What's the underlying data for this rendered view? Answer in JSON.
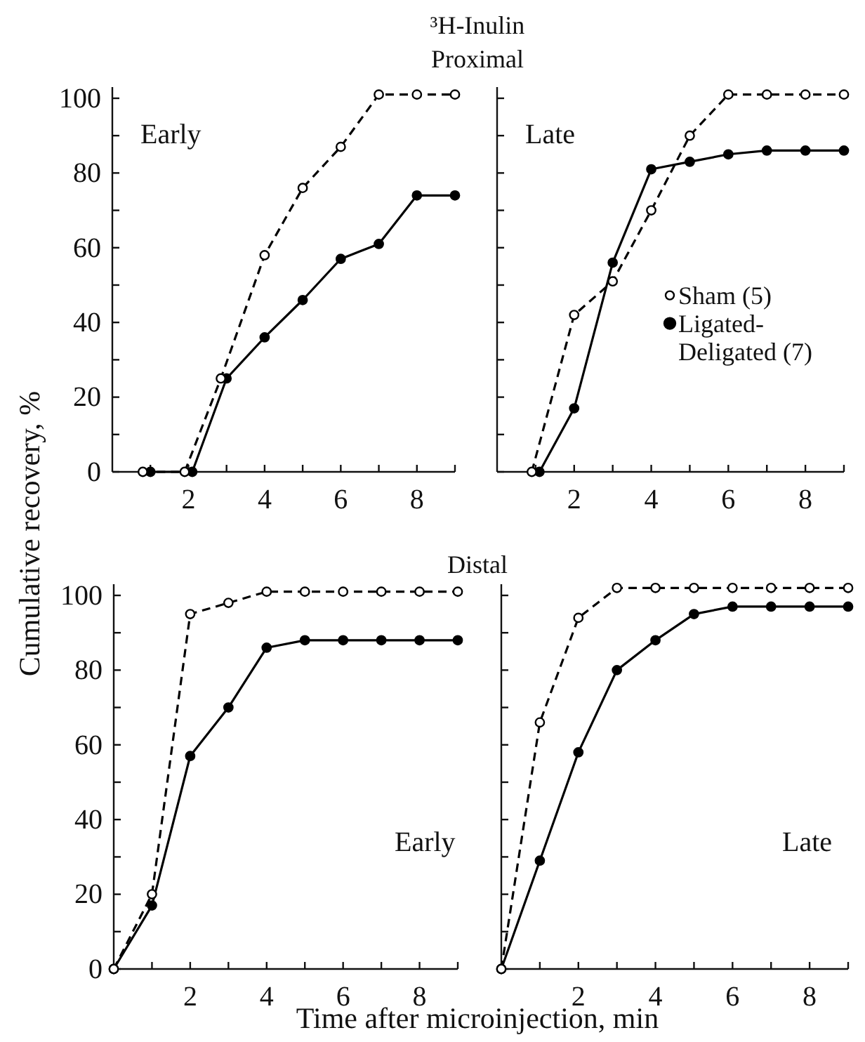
{
  "chart_data": [
    {
      "type": "line",
      "title": "³H-Inulin",
      "subtitle": "Proximal",
      "ylabel": "Cumulative recovery, %",
      "annotations": [
        "Early"
      ],
      "xlim": [
        0,
        9
      ],
      "ylim": [
        0,
        103
      ],
      "xticks": [
        {
          "value": 1,
          "label": null
        },
        2,
        {
          "value": 3,
          "label": null
        },
        4,
        {
          "value": 5,
          "label": null
        },
        6,
        {
          "value": 7,
          "label": null
        },
        8,
        {
          "value": 9,
          "label": null
        }
      ],
      "yticks": [
        0,
        {
          "value": 10,
          "label": null
        },
        20,
        {
          "value": 30,
          "label": null
        },
        40,
        {
          "value": 50,
          "label": null
        },
        60,
        {
          "value": 70,
          "label": null
        },
        80,
        {
          "value": 90,
          "label": null
        },
        100
      ],
      "marker": "circle",
      "grid": false,
      "legend": false,
      "series": [
        {
          "color": "#000000",
          "line_style": "dashed",
          "x": [
            0.8,
            1.9,
            2.85,
            4,
            5,
            6,
            7,
            8,
            9
          ],
          "values": [
            0,
            0,
            25,
            58,
            76,
            87,
            101,
            101,
            101
          ]
        },
        {
          "color": "#000000",
          "line_style": "solid",
          "x": [
            1,
            2.1,
            3,
            4,
            5,
            6,
            7,
            8,
            9
          ],
          "values": [
            0,
            0,
            25,
            36,
            46,
            57,
            61,
            74,
            74
          ]
        }
      ]
    },
    {
      "type": "line",
      "annotations": [
        "Late"
      ],
      "xlim": [
        0,
        9
      ],
      "ylim": [
        0,
        103
      ],
      "tick_labels": "x",
      "xticks": [
        {
          "value": 1,
          "label": null
        },
        2,
        {
          "value": 3,
          "label": null
        },
        4,
        {
          "value": 5,
          "label": null
        },
        6,
        {
          "value": 7,
          "label": null
        },
        8,
        {
          "value": 9,
          "label": null
        }
      ],
      "yticks": [
        0,
        {
          "value": 10,
          "label": null
        },
        20,
        {
          "value": 30,
          "label": null
        },
        40,
        {
          "value": 50,
          "label": null
        },
        60,
        {
          "value": 70,
          "label": null
        },
        80,
        {
          "value": 90,
          "label": null
        },
        100
      ],
      "marker": "circle",
      "grid": false,
      "legend": "right",
      "series": [
        {
          "name": "Sham (5)",
          "color": "#000000",
          "line_style": "dashed",
          "x": [
            0.9,
            2,
            3,
            4,
            5,
            6,
            7,
            8,
            9
          ],
          "values": [
            0,
            42,
            51,
            70,
            90,
            101,
            101,
            101,
            101
          ]
        },
        {
          "name": "Ligated-Deligated (7)",
          "color": "#000000",
          "line_style": "solid",
          "x": [
            1.1,
            2,
            3,
            4,
            5,
            6,
            7,
            8,
            9
          ],
          "values": [
            0,
            17,
            56,
            81,
            83,
            85,
            86,
            86,
            86
          ]
        }
      ]
    },
    {
      "type": "line",
      "title": "Distal",
      "xlabel": "Time after microinjection, min",
      "annotations": [
        "Early"
      ],
      "xlim": [
        0,
        9
      ],
      "ylim": [
        0,
        103
      ],
      "xticks": [
        {
          "value": 1,
          "label": null
        },
        2,
        {
          "value": 3,
          "label": null
        },
        4,
        {
          "value": 5,
          "label": null
        },
        6,
        {
          "value": 7,
          "label": null
        },
        8,
        {
          "value": 9,
          "label": null
        }
      ],
      "yticks": [
        0,
        {
          "value": 10,
          "label": null
        },
        20,
        {
          "value": 30,
          "label": null
        },
        40,
        {
          "value": 50,
          "label": null
        },
        60,
        {
          "value": 70,
          "label": null
        },
        80,
        {
          "value": 90,
          "label": null
        },
        100
      ],
      "marker": "circle",
      "grid": false,
      "legend": false,
      "series": [
        {
          "color": "#000000",
          "line_style": "dashed",
          "x": [
            0,
            1,
            2,
            3,
            4,
            5,
            6,
            7,
            8,
            9
          ],
          "values": [
            0,
            20,
            95,
            98,
            101,
            101,
            101,
            101,
            101,
            101
          ]
        },
        {
          "color": "#000000",
          "line_style": "solid",
          "x": [
            0,
            1,
            2,
            3,
            4,
            5,
            6,
            7,
            8,
            9
          ],
          "values": [
            0,
            17,
            57,
            70,
            86,
            88,
            88,
            88,
            88,
            88
          ]
        }
      ]
    },
    {
      "type": "line",
      "annotations": [
        "Late"
      ],
      "xlim": [
        0,
        9
      ],
      "ylim": [
        0,
        103
      ],
      "tick_labels": "x",
      "xticks": [
        {
          "value": 1,
          "label": null
        },
        2,
        {
          "value": 3,
          "label": null
        },
        4,
        {
          "value": 5,
          "label": null
        },
        6,
        {
          "value": 7,
          "label": null
        },
        8,
        {
          "value": 9,
          "label": null
        }
      ],
      "yticks": [
        0,
        {
          "value": 10,
          "label": null
        },
        20,
        {
          "value": 30,
          "label": null
        },
        40,
        {
          "value": 50,
          "label": null
        },
        60,
        {
          "value": 70,
          "label": null
        },
        80,
        {
          "value": 90,
          "label": null
        },
        100
      ],
      "marker": "circle",
      "grid": false,
      "legend": false,
      "series": [
        {
          "color": "#000000",
          "line_style": "dashed",
          "x": [
            0,
            1,
            2,
            3,
            4,
            5,
            6,
            7,
            8,
            9
          ],
          "values": [
            0,
            66,
            94,
            102,
            102,
            102,
            102,
            102,
            102,
            102
          ]
        },
        {
          "color": "#000000",
          "line_style": "solid",
          "x": [
            0,
            1,
            2,
            3,
            4,
            5,
            6,
            7,
            8,
            9
          ],
          "values": [
            0,
            29,
            58,
            80,
            88,
            95,
            97,
            97,
            97,
            97
          ]
        }
      ]
    }
  ]
}
